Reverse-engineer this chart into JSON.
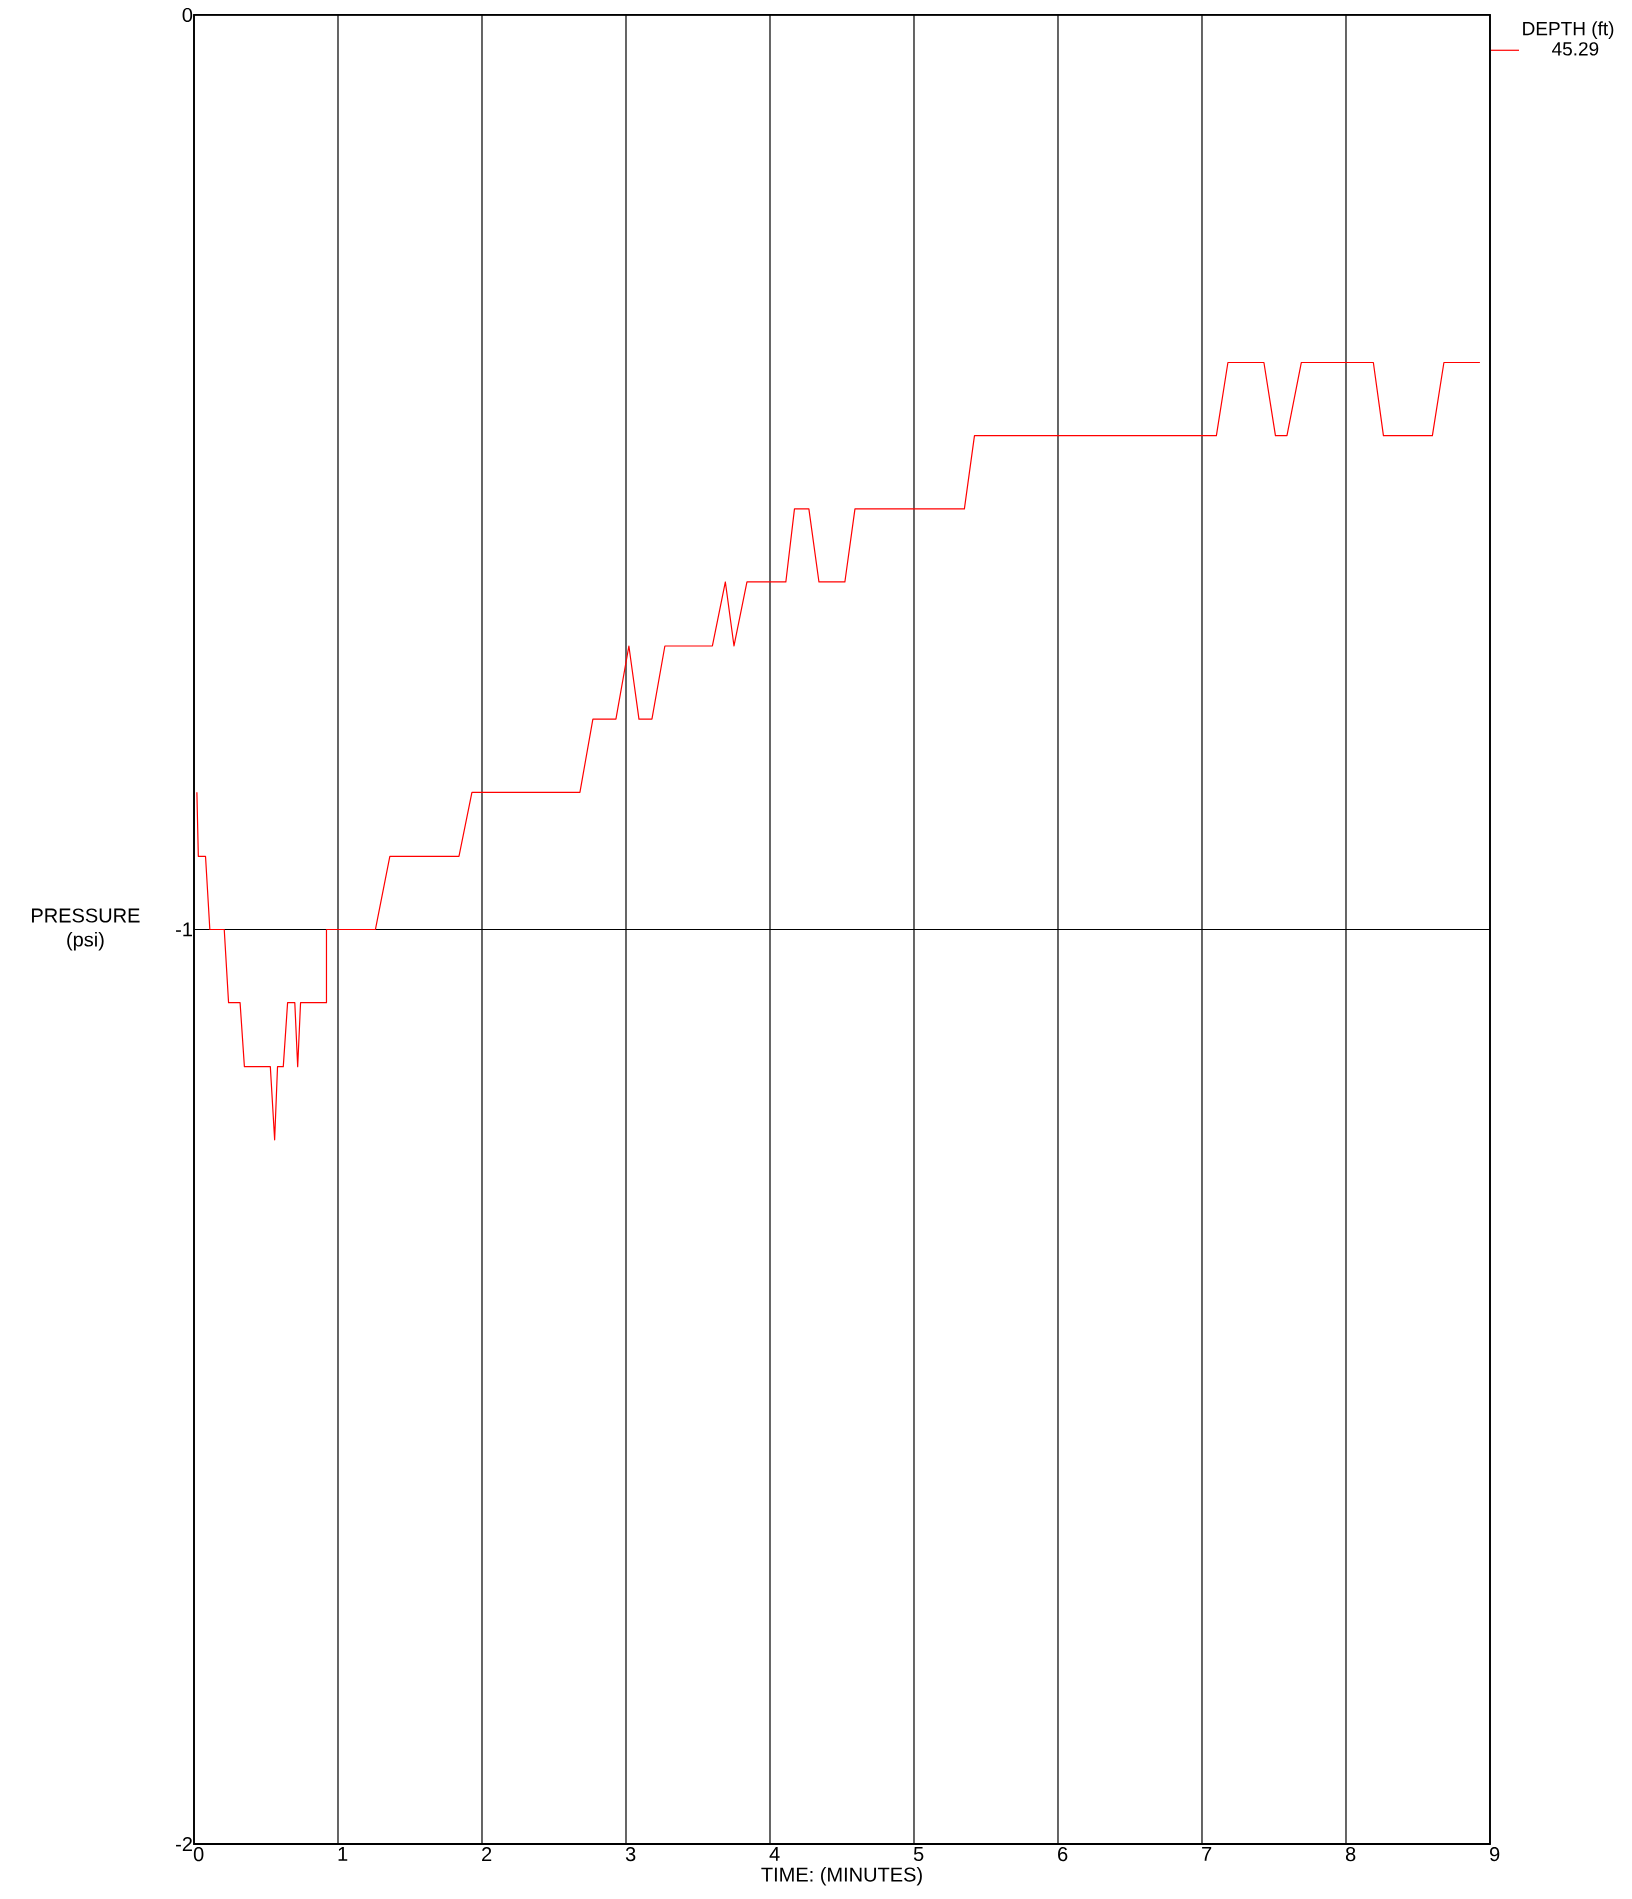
{
  "chart_data": {
    "type": "line",
    "xlabel": "TIME: (MINUTES)",
    "ylabel": "PRESSURE (psi)",
    "legend_title": "DEPTH (ft)",
    "xlim": [
      0,
      9
    ],
    "ylim": [
      -2,
      0
    ],
    "xticks": [
      0,
      1,
      2,
      3,
      4,
      5,
      6,
      7,
      8,
      9
    ],
    "yticks": [
      -2,
      -1,
      0
    ],
    "grid": true,
    "legend": "top right",
    "marker": "none",
    "line_style": "solid",
    "series": [
      {
        "name": "45.29",
        "color": "#ff0000",
        "x": [
          0.02,
          0.03,
          0.08,
          0.11,
          0.21,
          0.24,
          0.32,
          0.35,
          0.53,
          0.56,
          0.58,
          0.62,
          0.65,
          0.7,
          0.72,
          0.74,
          0.92,
          0.92,
          1.26,
          1.36,
          1.84,
          1.93,
          2.68,
          2.77,
          2.93,
          3.02,
          3.09,
          3.18,
          3.27,
          3.6,
          3.69,
          3.75,
          3.84,
          4.11,
          4.17,
          4.27,
          4.34,
          4.52,
          4.59,
          5.35,
          5.42,
          7.1,
          7.18,
          7.43,
          7.51,
          7.59,
          7.69,
          8.19,
          8.26,
          8.6,
          8.68,
          8.93
        ],
        "values": [
          -0.85,
          -0.92,
          -0.92,
          -1.0,
          -1.0,
          -1.08,
          -1.08,
          -1.15,
          -1.15,
          -1.23,
          -1.15,
          -1.15,
          -1.08,
          -1.08,
          -1.15,
          -1.08,
          -1.08,
          -1.0,
          -1.0,
          -0.92,
          -0.92,
          -0.85,
          -0.85,
          -0.77,
          -0.77,
          -0.69,
          -0.77,
          -0.77,
          -0.69,
          -0.69,
          -0.62,
          -0.69,
          -0.62,
          -0.62,
          -0.54,
          -0.54,
          -0.62,
          -0.62,
          -0.54,
          -0.54,
          -0.46,
          -0.46,
          -0.38,
          -0.38,
          -0.46,
          -0.46,
          -0.38,
          -0.38,
          -0.46,
          -0.46,
          -0.38,
          -0.38
        ]
      }
    ]
  }
}
